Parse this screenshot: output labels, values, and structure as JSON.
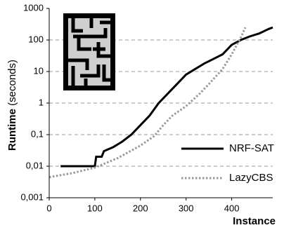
{
  "chart_data": {
    "type": "line",
    "log_y": true,
    "grid": true,
    "legend": "lower right",
    "xlabel": "Instance",
    "ylabel": {
      "main": "Runtime",
      "unit": "(seconds)"
    },
    "xlim": [
      0,
      490
    ],
    "xticks": [
      0,
      100,
      200,
      300,
      400
    ],
    "ylim": [
      0.001,
      1000
    ],
    "yticks": [
      {
        "value": 0.001,
        "label": "0,001"
      },
      {
        "value": 0.01,
        "label": "0,01"
      },
      {
        "value": 0.1,
        "label": "0,1"
      },
      1,
      10,
      100,
      1000
    ],
    "series": [
      {
        "name": "NRF-SAT",
        "color": "#000000",
        "dash": "solid",
        "x": [
          25,
          100,
          103,
          115,
          120,
          140,
          160,
          180,
          200,
          220,
          240,
          260,
          280,
          300,
          320,
          340,
          360,
          380,
          400,
          420,
          440,
          460,
          480,
          490
        ],
        "values": [
          0.01,
          0.01,
          0.02,
          0.02,
          0.03,
          0.04,
          0.06,
          0.1,
          0.2,
          0.4,
          1,
          2,
          4,
          8,
          12,
          18,
          25,
          35,
          70,
          100,
          130,
          160,
          220,
          250
        ]
      },
      {
        "name": "LazyCBS",
        "color": "#999999",
        "dash": "dotted",
        "x": [
          0,
          50,
          100,
          150,
          200,
          230,
          250,
          270,
          300,
          330,
          350,
          380,
          400,
          420,
          430
        ],
        "values": [
          0.0045,
          0.006,
          0.009,
          0.018,
          0.045,
          0.09,
          0.2,
          0.4,
          0.8,
          2,
          4,
          12,
          35,
          120,
          250
        ]
      }
    ]
  }
}
